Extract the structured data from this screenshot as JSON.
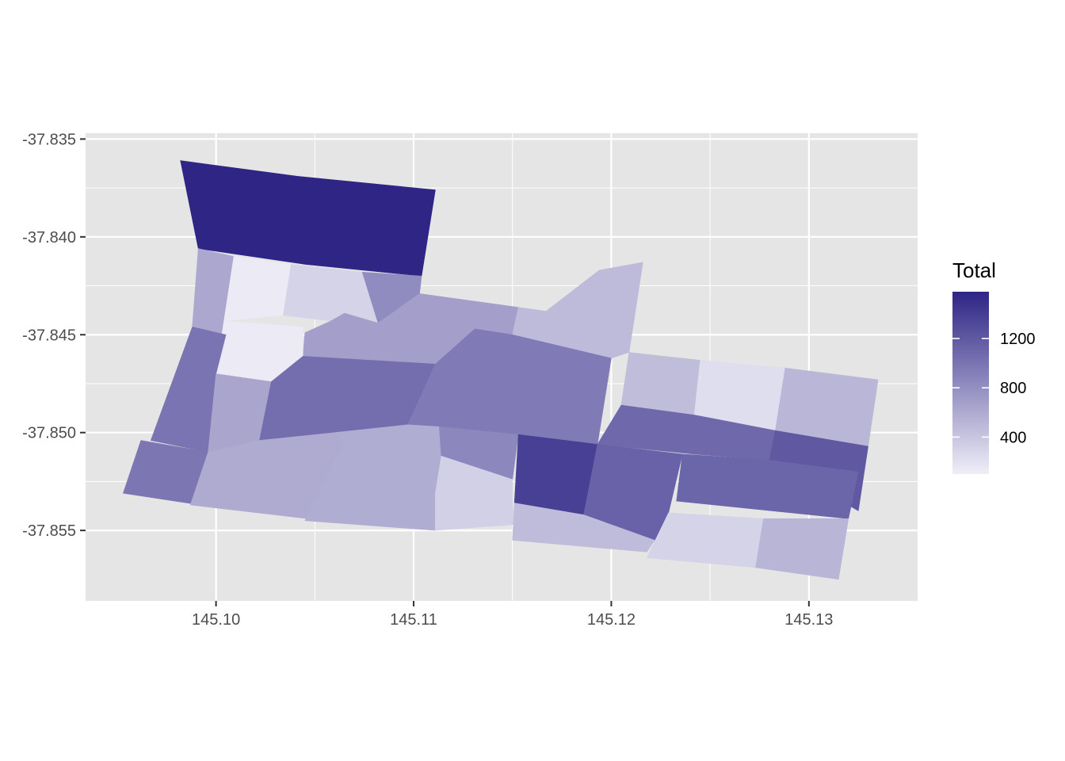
{
  "chart_data": {
    "type": "choropleth",
    "title": "",
    "xlabel": "",
    "ylabel": "",
    "xlim": [
      145.0934,
      145.1355
    ],
    "ylim": [
      -37.8586,
      -37.8347
    ],
    "x_ticks": [
      145.1,
      145.11,
      145.12,
      145.13
    ],
    "x_tick_labels": [
      "145.10",
      "145.11",
      "145.12",
      "145.13"
    ],
    "y_ticks": [
      -37.835,
      -37.84,
      -37.845,
      -37.85,
      -37.855
    ],
    "y_tick_labels": [
      "-37.835",
      "-37.840",
      "-37.845",
      "-37.850",
      "-37.855"
    ],
    "grid": true,
    "panel_background": "#e5e5e5",
    "grid_color": "#ffffff",
    "legend": {
      "title": "Total",
      "position": "right",
      "ticks": [
        400,
        800,
        1200
      ],
      "tick_labels": [
        "400",
        "800",
        "1200"
      ],
      "min": 100,
      "max": 1580,
      "color_low": "#efeef7",
      "color_high": "#2e2585"
    },
    "regions": [
      {
        "total": 1580,
        "coords": [
          [
            145.0982,
            -37.8361
          ],
          [
            145.1041,
            -37.8369
          ],
          [
            145.1111,
            -37.8376
          ],
          [
            145.1104,
            -37.842
          ],
          [
            145.1045,
            -37.8414
          ],
          [
            145.0991,
            -37.8406
          ]
        ]
      },
      {
        "total": 620,
        "coords": [
          [
            145.0991,
            -37.8406
          ],
          [
            145.1009,
            -37.841
          ],
          [
            145.1005,
            -37.845
          ],
          [
            145.0988,
            -37.8446
          ]
        ]
      },
      {
        "total": 120,
        "coords": [
          [
            145.1009,
            -37.841
          ],
          [
            145.1038,
            -37.8414
          ],
          [
            145.1034,
            -37.844
          ],
          [
            145.1004,
            -37.8443
          ]
        ]
      },
      {
        "total": 300,
        "coords": [
          [
            145.1038,
            -37.8414
          ],
          [
            145.1074,
            -37.8418
          ],
          [
            145.1082,
            -37.8444
          ],
          [
            145.1065,
            -37.8439
          ],
          [
            145.1058,
            -37.8443
          ],
          [
            145.1034,
            -37.844
          ]
        ]
      },
      {
        "total": 820,
        "coords": [
          [
            145.1074,
            -37.8418
          ],
          [
            145.1104,
            -37.842
          ],
          [
            145.1103,
            -37.8429
          ],
          [
            145.1082,
            -37.8444
          ]
        ]
      },
      {
        "total": 680,
        "coords": [
          [
            145.1058,
            -37.8443
          ],
          [
            145.1065,
            -37.8439
          ],
          [
            145.1082,
            -37.8444
          ],
          [
            145.1103,
            -37.8429
          ],
          [
            145.1153,
            -37.8436
          ],
          [
            145.115,
            -37.845
          ],
          [
            145.1131,
            -37.8447
          ],
          [
            145.1111,
            -37.8465
          ],
          [
            145.1044,
            -37.8461
          ],
          [
            145.1045,
            -37.8449
          ]
        ]
      },
      {
        "total": 480,
        "coords": [
          [
            145.1153,
            -37.8436
          ],
          [
            145.1167,
            -37.8438
          ],
          [
            145.1194,
            -37.8417
          ],
          [
            145.1216,
            -37.8413
          ],
          [
            145.1209,
            -37.8459
          ],
          [
            145.12,
            -37.8462
          ],
          [
            145.115,
            -37.845
          ]
        ]
      },
      {
        "total": 130,
        "coords": [
          [
            145.1004,
            -37.8443
          ],
          [
            145.1044,
            -37.8446
          ],
          [
            145.1044,
            -37.8461
          ],
          [
            145.1028,
            -37.8474
          ],
          [
            145.1,
            -37.847
          ]
        ]
      },
      {
        "total": 1000,
        "coords": [
          [
            145.0988,
            -37.8446
          ],
          [
            145.1005,
            -37.845
          ],
          [
            145.1,
            -37.847
          ],
          [
            145.0996,
            -37.851
          ],
          [
            145.0967,
            -37.8504
          ]
        ]
      },
      {
        "total": 640,
        "coords": [
          [
            145.1,
            -37.847
          ],
          [
            145.1028,
            -37.8474
          ],
          [
            145.1022,
            -37.8504
          ],
          [
            145.0996,
            -37.851
          ]
        ]
      },
      {
        "total": 1040,
        "coords": [
          [
            145.1028,
            -37.8474
          ],
          [
            145.1044,
            -37.8461
          ],
          [
            145.1111,
            -37.8465
          ],
          [
            145.1097,
            -37.8496
          ],
          [
            145.106,
            -37.85
          ],
          [
            145.1022,
            -37.8504
          ]
        ]
      },
      {
        "total": 950,
        "coords": [
          [
            145.1111,
            -37.8465
          ],
          [
            145.1131,
            -37.8447
          ],
          [
            145.115,
            -37.845
          ],
          [
            145.12,
            -37.8462
          ],
          [
            145.1193,
            -37.8506
          ],
          [
            145.1116,
            -37.85
          ],
          [
            145.1097,
            -37.8496
          ]
        ]
      },
      {
        "total": 460,
        "coords": [
          [
            145.1209,
            -37.8459
          ],
          [
            145.1245,
            -37.8463
          ],
          [
            145.1242,
            -37.8491
          ],
          [
            145.1205,
            -37.8486
          ]
        ]
      },
      {
        "total": 220,
        "coords": [
          [
            145.1245,
            -37.8463
          ],
          [
            145.1288,
            -37.8467
          ],
          [
            145.1283,
            -37.8506
          ],
          [
            145.1242,
            -37.8491
          ]
        ]
      },
      {
        "total": 510,
        "coords": [
          [
            145.1288,
            -37.8467
          ],
          [
            145.1335,
            -37.8473
          ],
          [
            145.133,
            -37.8507
          ],
          [
            145.1283,
            -37.8499
          ]
        ]
      },
      {
        "total": 1080,
        "coords": [
          [
            145.1205,
            -37.8486
          ],
          [
            145.1242,
            -37.8491
          ],
          [
            145.1283,
            -37.8499
          ],
          [
            145.128,
            -37.8514
          ],
          [
            145.1242,
            -37.8511
          ],
          [
            145.1193,
            -37.8506
          ]
        ]
      },
      {
        "total": 1200,
        "coords": [
          [
            145.1283,
            -37.8499
          ],
          [
            145.133,
            -37.8507
          ],
          [
            145.1325,
            -37.854
          ],
          [
            145.128,
            -37.8514
          ]
        ]
      },
      {
        "total": 980,
        "coords": [
          [
            145.0962,
            -37.8504
          ],
          [
            145.0996,
            -37.851
          ],
          [
            145.0992,
            -37.8537
          ],
          [
            145.0953,
            -37.8531
          ]
        ]
      },
      {
        "total": 600,
        "coords": [
          [
            145.0996,
            -37.851
          ],
          [
            145.1022,
            -37.8504
          ],
          [
            145.106,
            -37.85
          ],
          [
            145.1071,
            -37.8508
          ],
          [
            145.1055,
            -37.8545
          ],
          [
            145.0987,
            -37.8537
          ]
        ]
      },
      {
        "total": 580,
        "coords": [
          [
            145.106,
            -37.85
          ],
          [
            145.1097,
            -37.8496
          ],
          [
            145.1113,
            -37.8497
          ],
          [
            145.1114,
            -37.8512
          ],
          [
            145.1111,
            -37.855
          ],
          [
            145.1045,
            -37.8545
          ],
          [
            145.1065,
            -37.8505
          ]
        ]
      },
      {
        "total": 860,
        "coords": [
          [
            145.1113,
            -37.8497
          ],
          [
            145.1153,
            -37.8501
          ],
          [
            145.115,
            -37.8524
          ],
          [
            145.1114,
            -37.8512
          ]
        ]
      },
      {
        "total": 1380,
        "coords": [
          [
            145.1153,
            -37.8501
          ],
          [
            145.1193,
            -37.8506
          ],
          [
            145.1189,
            -37.8544
          ],
          [
            145.1151,
            -37.8536
          ]
        ]
      },
      {
        "total": 1130,
        "coords": [
          [
            145.1193,
            -37.8506
          ],
          [
            145.1236,
            -37.8511
          ],
          [
            145.1229,
            -37.8541
          ],
          [
            145.1222,
            -37.8555
          ],
          [
            145.1186,
            -37.8542
          ]
        ]
      },
      {
        "total": 1110,
        "coords": [
          [
            145.1236,
            -37.8511
          ],
          [
            145.128,
            -37.8514
          ],
          [
            145.1325,
            -37.852
          ],
          [
            145.132,
            -37.8544
          ],
          [
            145.1233,
            -37.8535
          ]
        ]
      },
      {
        "total": 320,
        "coords": [
          [
            145.1114,
            -37.8512
          ],
          [
            145.115,
            -37.8524
          ],
          [
            145.115,
            -37.8536
          ],
          [
            145.1151,
            -37.8547
          ],
          [
            145.1111,
            -37.855
          ],
          [
            145.1111,
            -37.8531
          ]
        ]
      },
      {
        "total": 470,
        "coords": [
          [
            145.1151,
            -37.8536
          ],
          [
            145.1186,
            -37.8542
          ],
          [
            145.1222,
            -37.8555
          ],
          [
            145.1218,
            -37.8561
          ],
          [
            145.115,
            -37.8555
          ]
        ]
      },
      {
        "total": 300,
        "coords": [
          [
            145.1229,
            -37.8541
          ],
          [
            145.1277,
            -37.8544
          ],
          [
            145.1273,
            -37.8569
          ],
          [
            145.1218,
            -37.8564
          ]
        ]
      },
      {
        "total": 520,
        "coords": [
          [
            145.1277,
            -37.8544
          ],
          [
            145.132,
            -37.8544
          ],
          [
            145.1315,
            -37.8575
          ],
          [
            145.1273,
            -37.8569
          ]
        ]
      }
    ]
  }
}
